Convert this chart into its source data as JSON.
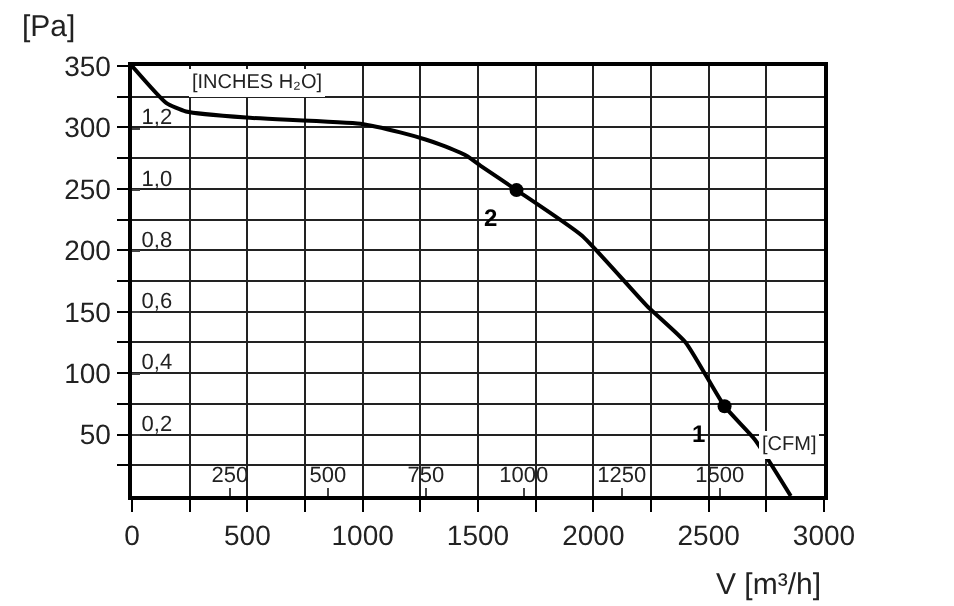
{
  "chart_data": {
    "type": "line",
    "xlabel": "V [m³/h]",
    "ylabel": "[Pa]",
    "x2label": "[CFM]",
    "y2label": "[INCHES H₂O]",
    "series": [
      {
        "color": "#000000",
        "x": [
          0,
          148,
          234,
          495,
          990,
          1163,
          1276,
          1337,
          1450,
          1510,
          1667,
          1950,
          2231,
          2400,
          2569,
          2700,
          2856
        ],
        "values": [
          350,
          320,
          313,
          308,
          303,
          296,
          290,
          286,
          277,
          269,
          249,
          212,
          155,
          125,
          73,
          46,
          0
        ]
      },
      {
        "type": "scatter",
        "color": "#000000",
        "marker": "circle",
        "x": [
          2569,
          1667
        ],
        "values": [
          73,
          249
        ]
      }
    ],
    "annotations": [
      {
        "text": "1",
        "x": 2569,
        "y": 73
      },
      {
        "text": "2",
        "x": 1667,
        "y": 249
      }
    ],
    "xlim": [
      0,
      3000
    ],
    "ylim": [
      0,
      350
    ],
    "xticks": [
      0,
      {
        "value": 250,
        "label": null
      },
      500,
      {
        "value": 750,
        "label": null
      },
      1000,
      {
        "value": 1250,
        "label": null
      },
      1500,
      {
        "value": 1750,
        "label": null
      },
      2000,
      {
        "value": 2250,
        "label": null
      },
      2500,
      {
        "value": 2750,
        "label": null
      },
      3000
    ],
    "yticks": [
      {
        "value": 25,
        "label": null
      },
      50,
      {
        "value": 75,
        "label": null
      },
      100,
      {
        "value": 125,
        "label": null
      },
      150,
      {
        "value": 175,
        "label": null
      },
      200,
      {
        "value": 225,
        "label": null
      },
      250,
      {
        "value": 275,
        "label": null
      },
      300,
      {
        "value": 325,
        "label": null
      },
      350
    ],
    "x2lim": [
      0,
      1766
    ],
    "x2ticks": [
      250,
      500,
      750,
      1000,
      1250,
      1500
    ],
    "y2lim": [
      0,
      1.405
    ],
    "y2ticks": [
      {
        "value": 0.2,
        "label": "0,2"
      },
      {
        "value": 0.4,
        "label": "0,4"
      },
      {
        "value": 0.6,
        "label": "0,6"
      },
      {
        "value": 0.8,
        "label": "0,8"
      },
      {
        "value": 1.0,
        "label": "1,0"
      },
      {
        "value": 1.2,
        "label": "1,2"
      }
    ],
    "grid": true,
    "line_style": "solid"
  }
}
